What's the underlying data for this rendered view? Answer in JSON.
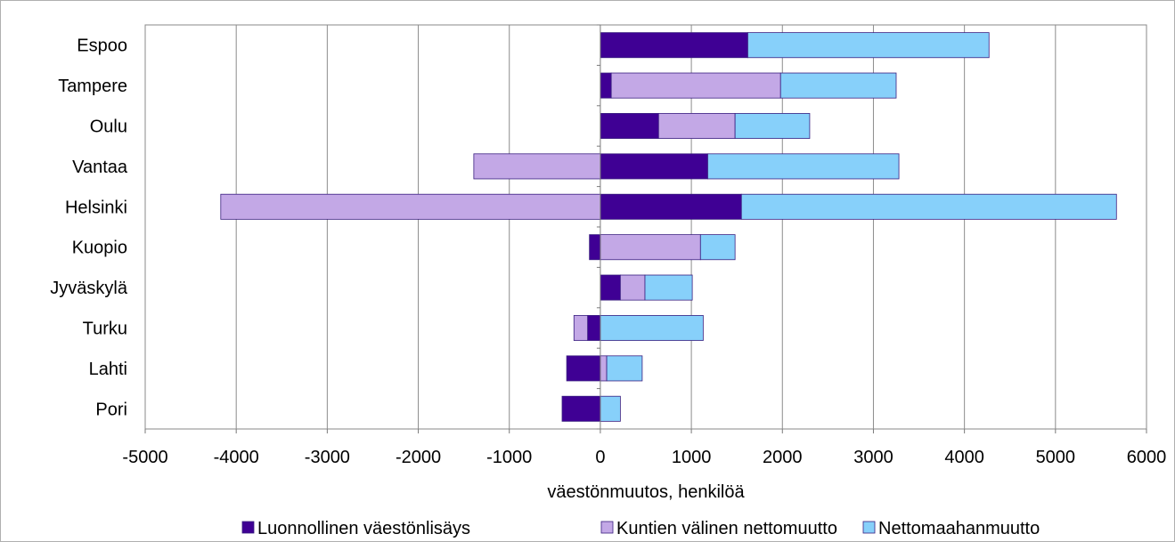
{
  "chart_data": {
    "type": "bar",
    "orientation": "horizontal",
    "stacked": true,
    "categories": [
      "Espoo",
      "Tampere",
      "Oulu",
      "Vantaa",
      "Helsinki",
      "Kuopio",
      "Jyväskylä",
      "Turku",
      "Lahti",
      "Pori"
    ],
    "series": [
      {
        "name": "Luonnollinen väestönlisäys",
        "color": "#3f0094",
        "values": [
          1620,
          120,
          640,
          1180,
          1550,
          -120,
          220,
          -140,
          -370,
          -420
        ]
      },
      {
        "name": "Kuntien välinen nettomuutto",
        "color": "#c3a8e6",
        "values": [
          0,
          1860,
          840,
          -1390,
          -4170,
          1100,
          270,
          -150,
          70,
          0
        ]
      },
      {
        "name": "Nettomaahanmuutto",
        "color": "#87d0fa",
        "values": [
          2650,
          1270,
          820,
          2100,
          4120,
          380,
          520,
          1130,
          390,
          220
        ]
      }
    ],
    "xlabel": "väestönmuutos,  henkilöä",
    "ylabel": "",
    "xlim": [
      -5000,
      6000
    ],
    "xticks": [
      "-5000",
      "-4000",
      "-3000",
      "-2000",
      "-1000",
      "0",
      "1000",
      "2000",
      "3000",
      "4000",
      "5000",
      "6000"
    ],
    "grid": true,
    "legend_position": "bottom"
  }
}
